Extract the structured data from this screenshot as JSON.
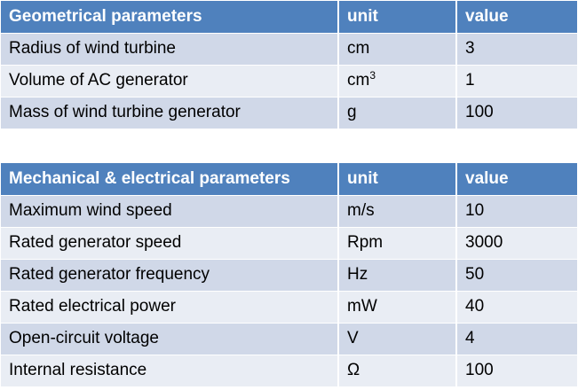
{
  "geometrical": {
    "headers": [
      "Geometrical parameters",
      "unit",
      "value"
    ],
    "rows": [
      {
        "parameter": "Radius of wind turbine",
        "unit": "cm",
        "unit_sup": "",
        "value": "3"
      },
      {
        "parameter": "Volume of AC generator",
        "unit": "cm",
        "unit_sup": "3",
        "value": "1"
      },
      {
        "parameter": "Mass of wind turbine generator",
        "unit": "g",
        "unit_sup": "",
        "value": "100"
      }
    ]
  },
  "mechanical_electrical": {
    "headers": [
      "Mechanical & electrical parameters",
      "unit",
      "value"
    ],
    "rows": [
      {
        "parameter": "Maximum wind speed",
        "unit": "m/s",
        "value": "10"
      },
      {
        "parameter": "Rated generator speed",
        "unit": "Rpm",
        "value": "3000"
      },
      {
        "parameter": "Rated generator frequency",
        "unit": "Hz",
        "value": "50"
      },
      {
        "parameter": "Rated electrical power",
        "unit": "mW",
        "value": "40"
      },
      {
        "parameter": "Open-circuit voltage",
        "unit": "V",
        "value": "4"
      },
      {
        "parameter": "Internal resistance",
        "unit": "Ω",
        "value": "100"
      }
    ]
  },
  "colors": {
    "header_background": "#4f81bd",
    "header_text": "#ffffff",
    "row_odd": "#d0d8e8",
    "row_even": "#e9edf4"
  }
}
